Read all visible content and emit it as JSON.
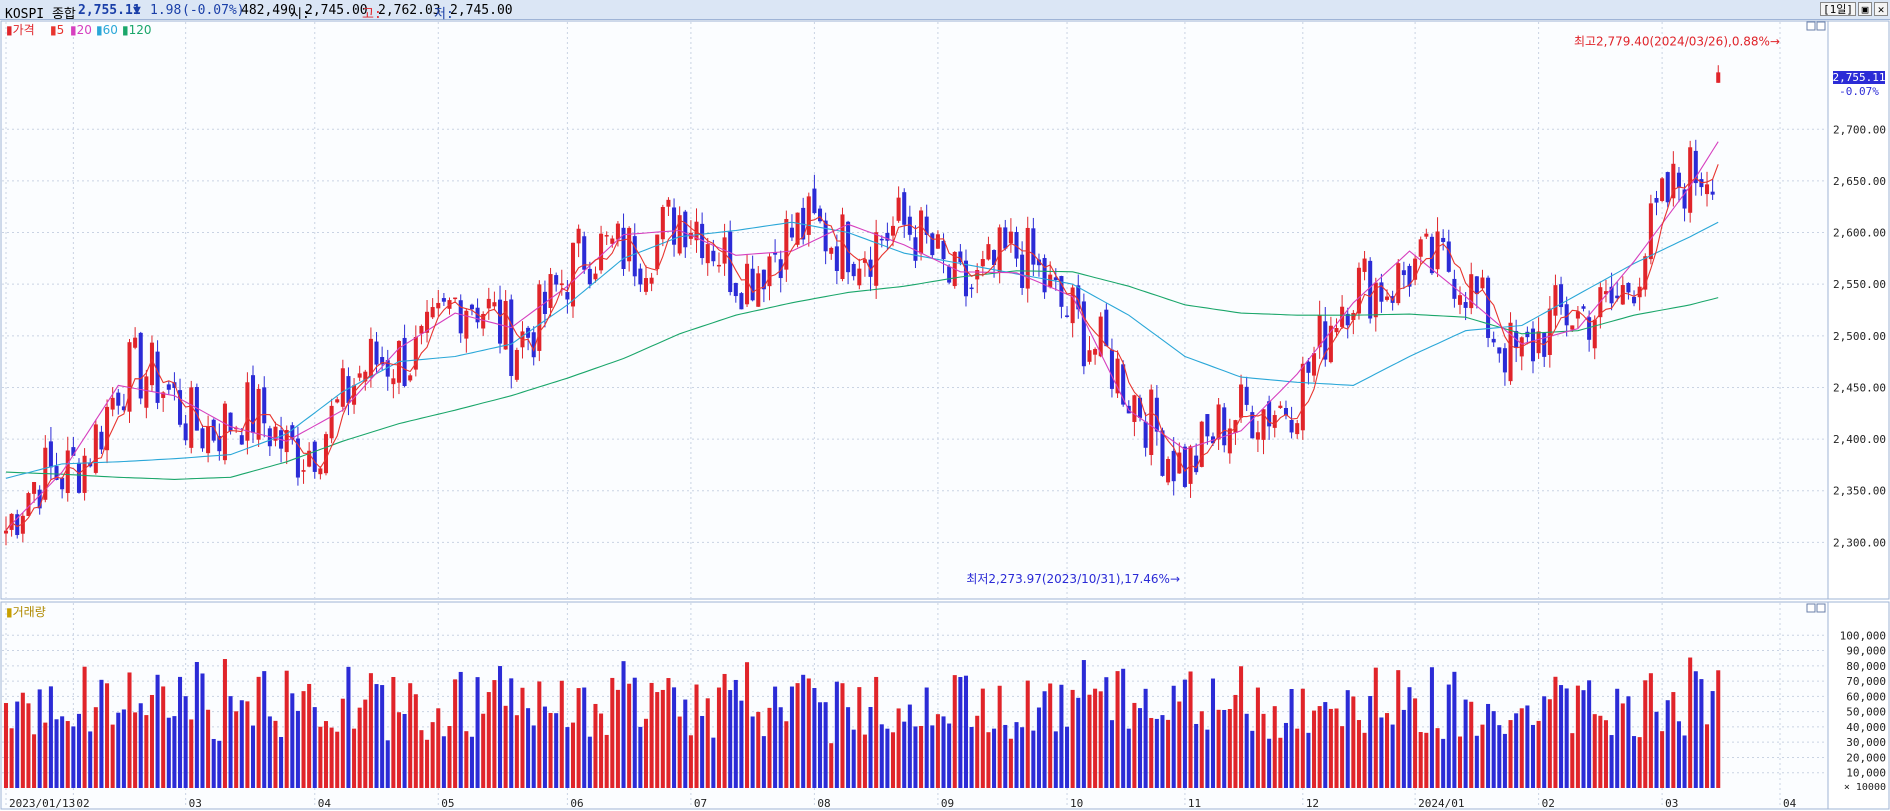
{
  "toolbar": {
    "symbol": "KOSPI 종합",
    "price": "2,755.11",
    "change_arrow": "▼",
    "change": "1.98",
    "change_pct": "(-0.07%)",
    "volume": "482,490",
    "open_label": "시:",
    "open": "2,745.00",
    "high_label": "고:",
    "high": "2,762.03",
    "low_label": "저:",
    "low": "2,745.00",
    "period_button": "[1일]"
  },
  "colors": {
    "up": "#e0242a",
    "down": "#2b2bd6",
    "ma5": "#e8352f",
    "ma20": "#d63fbf",
    "ma60": "#2aa7d8",
    "ma120": "#1aa66a",
    "grid": "#c9d3e3",
    "accent": "#1a3fa8"
  },
  "legend": {
    "price": {
      "marker": "▮",
      "label": "가격"
    },
    "ma": [
      {
        "marker": "▮",
        "label": "5"
      },
      {
        "marker": "▮",
        "label": "20"
      },
      {
        "marker": "▮",
        "label": "60"
      },
      {
        "marker": "▮",
        "label": "120"
      }
    ],
    "volume": {
      "marker": "▮",
      "label": "거래량"
    }
  },
  "annotations": {
    "high": "최고2,779.40(2024/03/26),0.88%→",
    "low": "최저2,273.97(2023/10/31),17.46%→",
    "current_price": "2,755.11",
    "current_change": "-0.07%"
  },
  "chart_data": [
    {
      "type": "candlestick",
      "title": "",
      "ylim": [
        2250,
        2800
      ],
      "yticks": [
        "2,300.00",
        "2,350.00",
        "2,400.00",
        "2,450.00",
        "2,500.00",
        "2,550.00",
        "2,600.00",
        "2,650.00",
        "2,700.00"
      ],
      "ytick_values": [
        2300,
        2350,
        2400,
        2450,
        2500,
        2550,
        2600,
        2650,
        2700
      ],
      "x_labels": [
        "2023/01/13",
        "02",
        "03",
        "04",
        "05",
        "06",
        "07",
        "08",
        "09",
        "10",
        "11",
        "12",
        "2024/01",
        "02",
        "03",
        "04"
      ],
      "x_label_days": [
        0,
        12,
        32,
        55,
        77,
        100,
        122,
        144,
        166,
        189,
        210,
        231,
        251,
        273,
        295,
        316
      ],
      "x_range": [
        0,
        316
      ],
      "grid": true,
      "moving_averages": [
        5,
        20,
        60,
        120
      ],
      "ma_sample_days": [
        0,
        10,
        20,
        30,
        40,
        50,
        60,
        70,
        80,
        90,
        100,
        110,
        120,
        130,
        140,
        150,
        160,
        170,
        180,
        190,
        200,
        210,
        220,
        230,
        240,
        250,
        260,
        270,
        280,
        290,
        300,
        305
      ],
      "ma20": [
        2312,
        2368,
        2452,
        2442,
        2412,
        2398,
        2428,
        2488,
        2522,
        2508,
        2548,
        2598,
        2602,
        2578,
        2582,
        2608,
        2588,
        2562,
        2561,
        2538,
        2428,
        2390,
        2408,
        2463,
        2532,
        2582,
        2538,
        2492,
        2507,
        2572,
        2645,
        2688
      ],
      "ma60": [
        2362,
        2376,
        2378,
        2381,
        2385,
        2405,
        2446,
        2475,
        2480,
        2492,
        2530,
        2575,
        2596,
        2602,
        2610,
        2600,
        2580,
        2570,
        2560,
        2550,
        2520,
        2480,
        2460,
        2455,
        2452,
        2480,
        2505,
        2510,
        2540,
        2570,
        2596,
        2610
      ],
      "ma120": [
        2368,
        2366,
        2363,
        2361,
        2363,
        2378,
        2398,
        2415,
        2428,
        2442,
        2459,
        2478,
        2502,
        2520,
        2532,
        2542,
        2548,
        2557,
        2563,
        2562,
        2548,
        2530,
        2522,
        2520,
        2520,
        2521,
        2518,
        2502,
        2505,
        2520,
        2530,
        2537
      ],
      "last": {
        "open": 2745.0,
        "high": 2762.03,
        "low": 2745.0,
        "close": 2755.11
      },
      "max": {
        "value": 2779.4,
        "date": "2024/03/26"
      },
      "min": {
        "value": 2273.97,
        "date": "2023/10/31"
      }
    },
    {
      "type": "bar",
      "title": "",
      "ylabel": "× 10000",
      "ylim": [
        0,
        110
      ],
      "yticks": [
        "10,000",
        "20,000",
        "30,000",
        "40,000",
        "50,000",
        "60,000",
        "70,000",
        "80,000",
        "90,000",
        "100,000"
      ],
      "ytick_values": [
        10,
        20,
        30,
        40,
        50,
        60,
        70,
        80,
        90,
        100
      ],
      "grid": true
    }
  ]
}
